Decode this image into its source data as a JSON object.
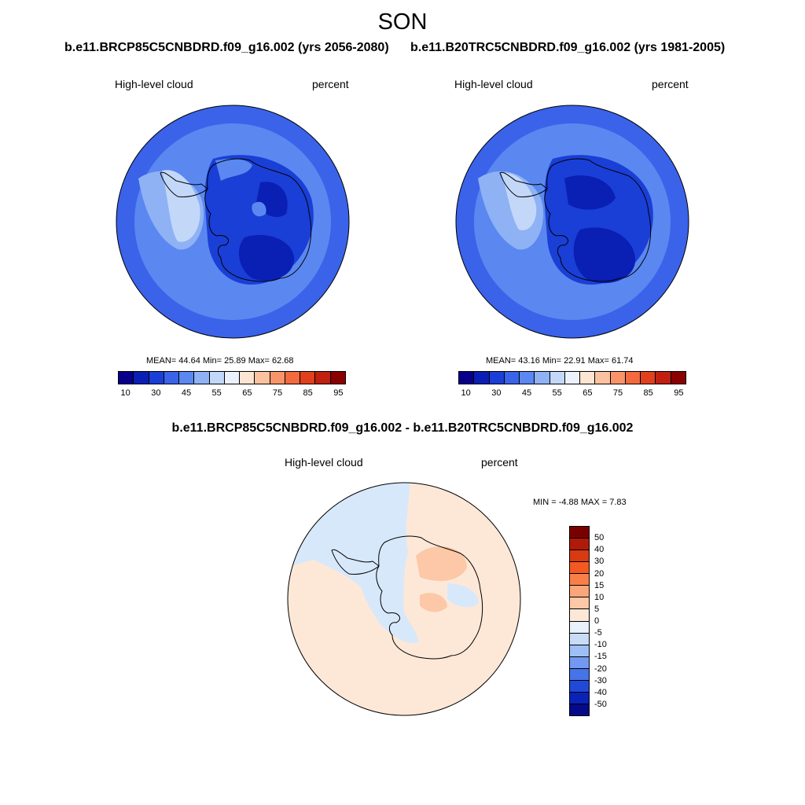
{
  "season": "SON",
  "panels": [
    {
      "case": "b.e11.BRCP85C5CNBDRD.f09_g16.002 (yrs 2056-2080)",
      "variable": "High-level cloud",
      "units": "percent",
      "stats": {
        "mean_label": "MEAN=",
        "mean": "44.64",
        "min_label": "Min=",
        "min": "25.89",
        "max_label": "Max=",
        "max": "62.68"
      }
    },
    {
      "case": "b.e11.B20TRC5CNBDRD.f09_g16.002 (yrs 1981-2005)",
      "variable": "High-level cloud",
      "units": "percent",
      "stats": {
        "mean_label": "MEAN=",
        "mean": "43.16",
        "min_label": "Min=",
        "min": "22.91",
        "max_label": "Max=",
        "max": "61.74"
      }
    }
  ],
  "abs_colorbar": {
    "labels": [
      "10",
      "30",
      "45",
      "55",
      "65",
      "75",
      "85",
      "95"
    ],
    "colors": [
      "#08008a",
      "#0a1fb4",
      "#1a3fd6",
      "#3a63ea",
      "#5a88f0",
      "#8fb2f5",
      "#c3d8f9",
      "#ecf2fd",
      "#fde5d3",
      "#fbc2a0",
      "#f9946a",
      "#f26a3e",
      "#e0401d",
      "#c02010",
      "#8b0000"
    ]
  },
  "diff": {
    "title": "b.e11.BRCP85C5CNBDRD.f09_g16.002 - b.e11.B20TRC5CNBDRD.f09_g16.002",
    "variable": "High-level cloud",
    "units": "percent",
    "min_label": "MIN =",
    "min": "-4.88",
    "max_label": "MAX =",
    "max": "7.83"
  },
  "diff_colorbar": {
    "labels": [
      "50",
      "40",
      "30",
      "20",
      "15",
      "10",
      "5",
      "0",
      "-5",
      "-10",
      "-15",
      "-20",
      "-30",
      "-40",
      "-50"
    ],
    "colors": [
      "#7a0000",
      "#b01a08",
      "#d83a12",
      "#f25a22",
      "#f88048",
      "#faa67a",
      "#fcc8a8",
      "#fde8d8",
      "#e8f1fc",
      "#c8dcf8",
      "#9ebff4",
      "#7299ef",
      "#4573e8",
      "#2149d8",
      "#0a22b8",
      "#050a8a"
    ]
  },
  "map_colors": {
    "ocean_outer": "#3a63ea",
    "ocean_mid": "#5a88f0",
    "light": "#8fb2f5",
    "pale": "#c3d8f9",
    "dark": "#1a3fd6",
    "darker": "#0a1fb4",
    "diff_pos": "#fde8d8",
    "diff_pos2": "#fcc8a8",
    "diff_neg": "#d8e8fb"
  }
}
